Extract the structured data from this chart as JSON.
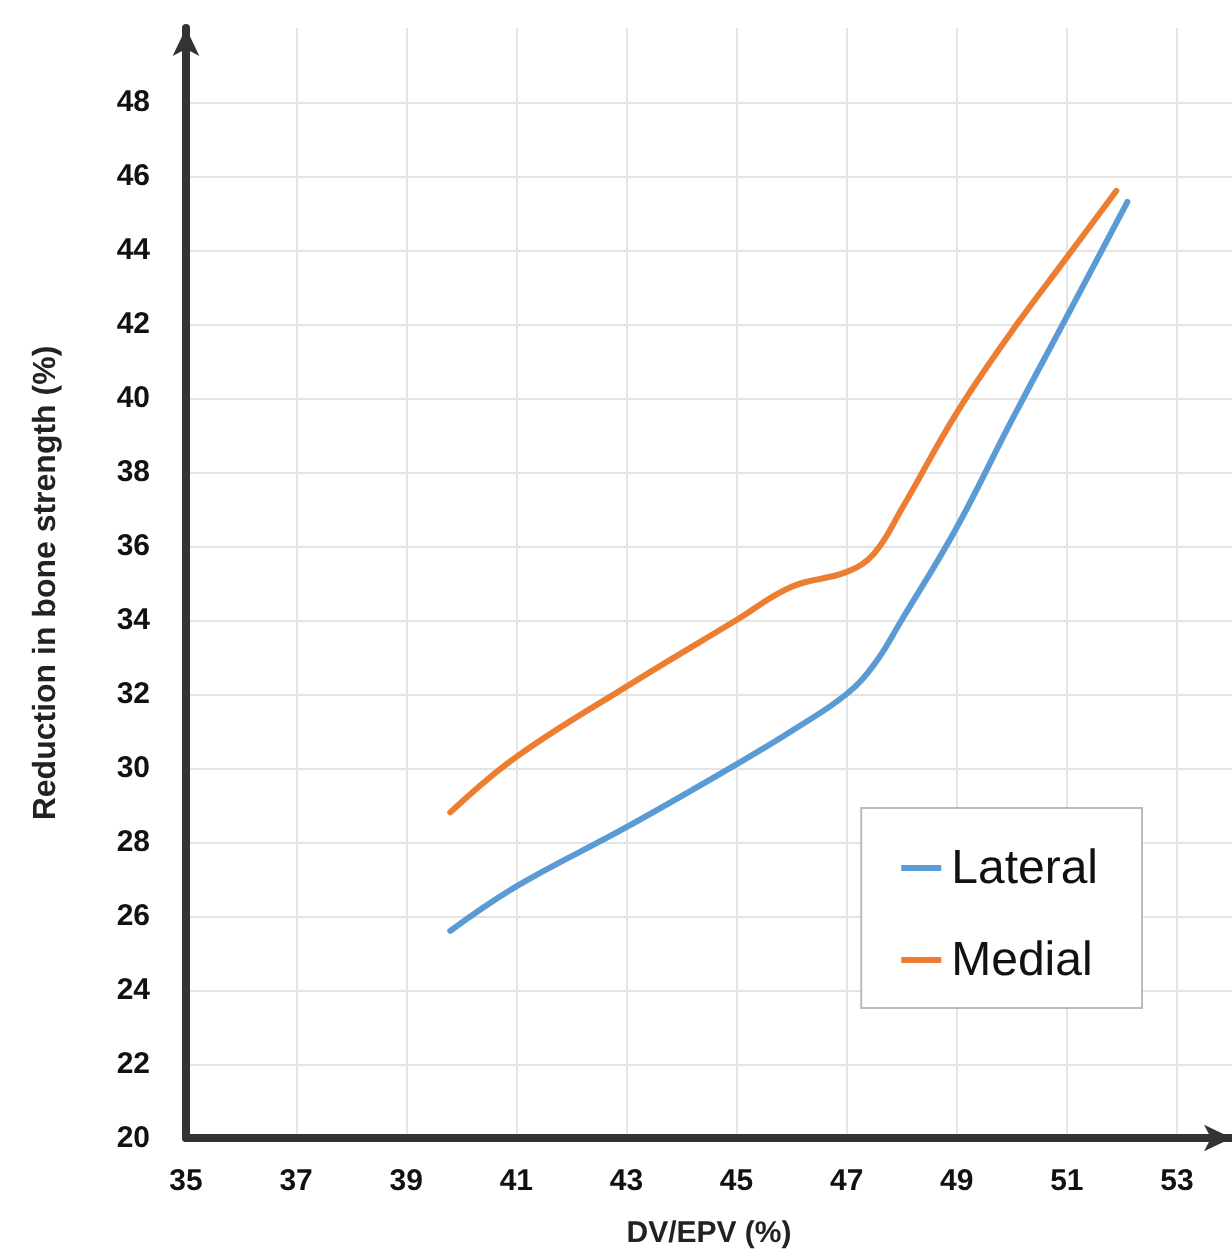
{
  "chart_data": {
    "type": "line",
    "xlabel": "DV/EPV (%)",
    "ylabel": "Reduction in bone strength (%)",
    "xlim": [
      35,
      54
    ],
    "xticks": [
      35,
      37,
      39,
      41,
      43,
      45,
      47,
      49,
      51,
      53
    ],
    "ylim": [
      20,
      50
    ],
    "yticks": [
      20,
      22,
      24,
      26,
      28,
      30,
      32,
      34,
      36,
      38,
      40,
      42,
      44,
      46,
      48
    ],
    "grid": true,
    "legend": "bottom right",
    "marker": "none",
    "line_style": "solid",
    "series": [
      {
        "name": "Lateral",
        "color": "#5b9bd5",
        "x": [
          39.8,
          41,
          43,
          45,
          46,
          47,
          47.5,
          48,
          49,
          50,
          51,
          52.1
        ],
        "values": [
          25.6,
          26.8,
          28.4,
          30.1,
          31.0,
          32.0,
          32.8,
          34.0,
          36.5,
          39.4,
          42.2,
          45.3
        ]
      },
      {
        "name": "Medial",
        "color": "#ed7d31",
        "x": [
          39.8,
          41,
          43,
          45,
          46,
          47,
          47.5,
          48,
          49,
          50,
          51,
          51.9
        ],
        "values": [
          28.8,
          30.3,
          32.2,
          34.0,
          34.9,
          35.3,
          35.8,
          37.0,
          39.6,
          41.8,
          43.8,
          45.6
        ]
      }
    ]
  }
}
